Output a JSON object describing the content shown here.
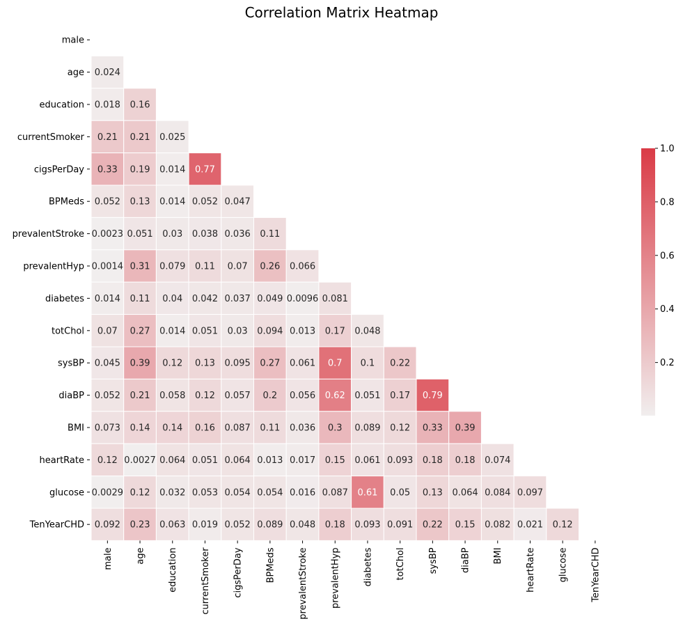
{
  "chart_data": {
    "type": "heatmap",
    "title": "Correlation Matrix Heatmap",
    "variables": [
      "male",
      "age",
      "education",
      "currentSmoker",
      "cigsPerDay",
      "BPMeds",
      "prevalentStroke",
      "prevalentHyp",
      "diabetes",
      "totChol",
      "sysBP",
      "diaBP",
      "BMI",
      "heartRate",
      "glucose",
      "TenYearCHD"
    ],
    "mask": "upper-triangle-and-diagonal",
    "rows": [
      [],
      [
        "0.024"
      ],
      [
        "0.018",
        "0.16"
      ],
      [
        "0.21",
        "0.21",
        "0.025"
      ],
      [
        "0.33",
        "0.19",
        "0.014",
        "0.77"
      ],
      [
        "0.052",
        "0.13",
        "0.014",
        "0.052",
        "0.047"
      ],
      [
        "0.0023",
        "0.051",
        "0.03",
        "0.038",
        "0.036",
        "0.11"
      ],
      [
        "0.0014",
        "0.31",
        "0.079",
        "0.11",
        "0.07",
        "0.26",
        "0.066"
      ],
      [
        "0.014",
        "0.11",
        "0.04",
        "0.042",
        "0.037",
        "0.049",
        "0.0096",
        "0.081"
      ],
      [
        "0.07",
        "0.27",
        "0.014",
        "0.051",
        "0.03",
        "0.094",
        "0.013",
        "0.17",
        "0.048"
      ],
      [
        "0.045",
        "0.39",
        "0.12",
        "0.13",
        "0.095",
        "0.27",
        "0.061",
        "0.7",
        "0.1",
        "0.22"
      ],
      [
        "0.052",
        "0.21",
        "0.058",
        "0.12",
        "0.057",
        "0.2",
        "0.056",
        "0.62",
        "0.051",
        "0.17",
        "0.79"
      ],
      [
        "0.073",
        "0.14",
        "0.14",
        "0.16",
        "0.087",
        "0.11",
        "0.036",
        "0.3",
        "0.089",
        "0.12",
        "0.33",
        "0.39"
      ],
      [
        "0.12",
        "0.0027",
        "0.064",
        "0.051",
        "0.064",
        "0.013",
        "0.017",
        "0.15",
        "0.061",
        "0.093",
        "0.18",
        "0.18",
        "0.074"
      ],
      [
        "0.0029",
        "0.12",
        "0.032",
        "0.053",
        "0.054",
        "0.054",
        "0.016",
        "0.087",
        "0.61",
        "0.05",
        "0.13",
        "0.064",
        "0.084",
        "0.097"
      ],
      [
        "0.092",
        "0.23",
        "0.063",
        "0.019",
        "0.052",
        "0.089",
        "0.048",
        "0.18",
        "0.093",
        "0.091",
        "0.22",
        "0.15",
        "0.082",
        "0.021",
        "0.12"
      ]
    ],
    "colorbar": {
      "ticks": [
        "0.2",
        "0.4",
        "0.6",
        "0.8",
        "1.0"
      ],
      "range": [
        0.0014,
        1.0
      ],
      "color_low": "#f1eeee",
      "color_high": "#da3b46"
    },
    "annotation_dark_text_color": "#262626",
    "annotation_light_text_color": "#ffffff"
  }
}
